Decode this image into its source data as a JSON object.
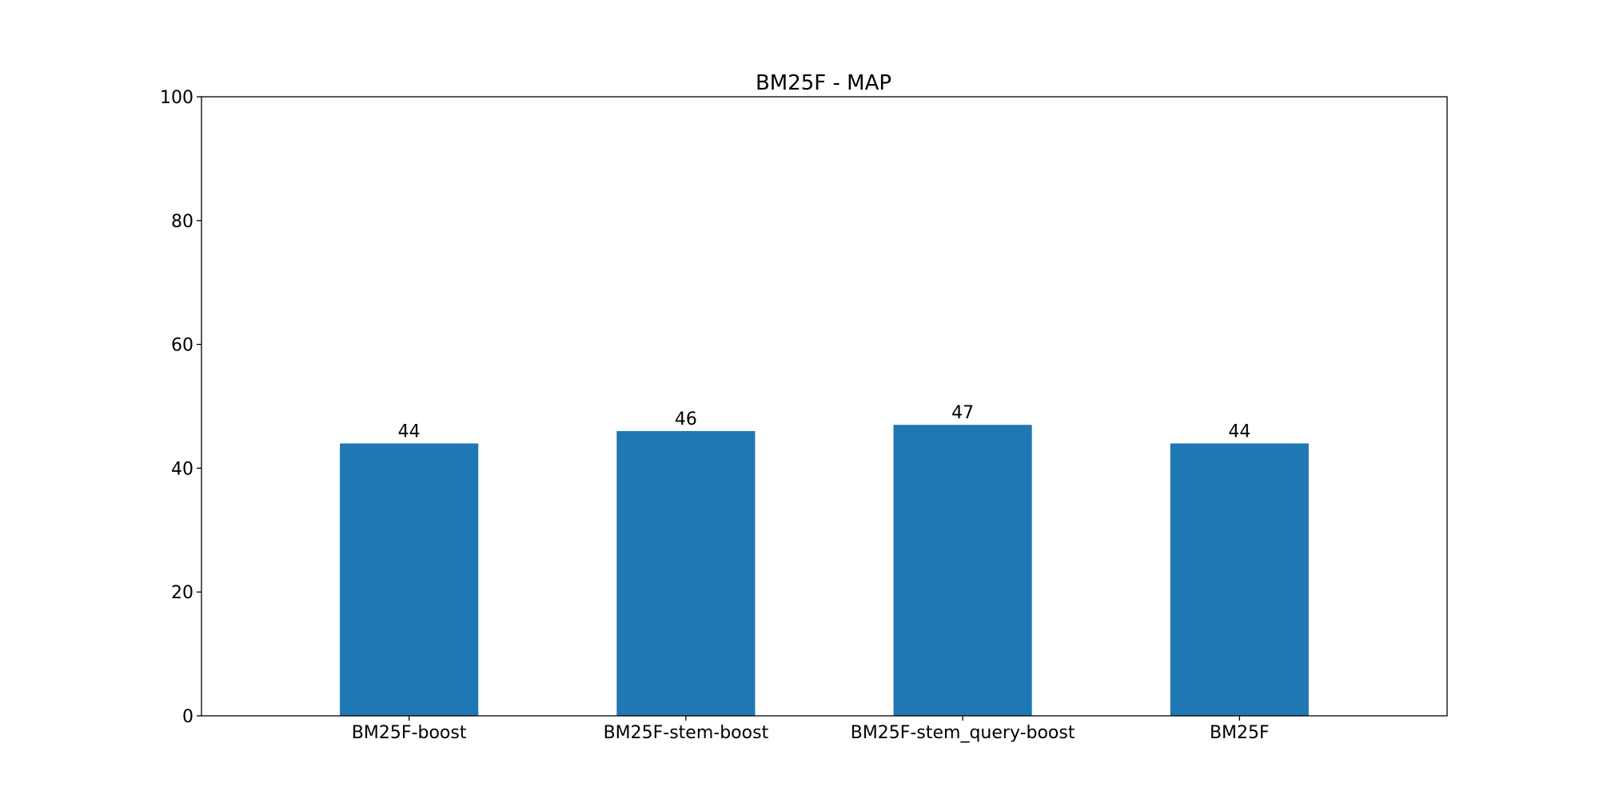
{
  "chart_data": {
    "type": "bar",
    "title": "BM25F - MAP",
    "xlabel": "",
    "ylabel": "",
    "categories": [
      "BM25F-boost",
      "BM25F-stem-boost",
      "BM25F-stem_query-boost",
      "BM25F"
    ],
    "values": [
      44,
      46,
      47,
      44
    ],
    "data_labels": [
      "44",
      "46",
      "47",
      "44"
    ],
    "ylim": [
      0,
      100
    ],
    "yticks": [
      0,
      20,
      40,
      60,
      80,
      100
    ],
    "grid": false,
    "legend": "none",
    "bar_color": "#1f77b4"
  }
}
